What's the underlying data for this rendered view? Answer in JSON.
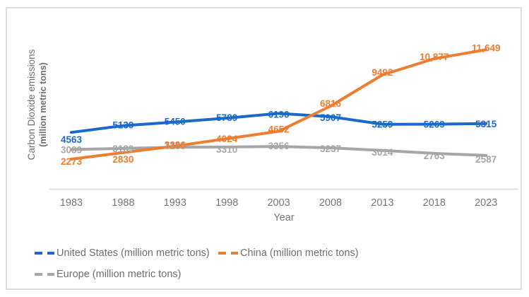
{
  "chart": {
    "y_axis_title_line1": "Carbon Dioxide emissions",
    "y_axis_title_line2": "(million metric tons)",
    "x_axis_title": "Year"
  },
  "chart_data": {
    "type": "line",
    "title": "",
    "xlabel": "Year",
    "ylabel": "Carbon Dioxide emissions (million metric tons)",
    "categories": [
      "1983",
      "1988",
      "1993",
      "1998",
      "2003",
      "2008",
      "2013",
      "2018",
      "2023"
    ],
    "series": [
      {
        "name": "United States (million metric tons)",
        "color": "#1b6ac9",
        "values": [
          4563,
          5139,
          5450,
          5789,
          6190,
          5907,
          5259,
          5269,
          5315
        ],
        "labels": [
          "4563",
          "5139",
          "5450",
          "5789",
          "6190",
          "5907",
          "5259",
          "5269",
          "5315"
        ]
      },
      {
        "name": "China (million metric tons)",
        "color": "#ed7d31",
        "values": [
          2273,
          2830,
          3386,
          4024,
          4652,
          6816,
          9492,
          10877,
          11649
        ],
        "labels": [
          "2273",
          "2830",
          "3386",
          "4024",
          "4652",
          "6816",
          "9492",
          "10,877",
          "11,649"
        ]
      },
      {
        "name": "Europe (million metric tons)",
        "color": "#a6a6a6",
        "values": [
          3089,
          3189,
          3288,
          3310,
          3356,
          3237,
          3014,
          2763,
          2587
        ],
        "labels": [
          "3089",
          "3189",
          "3288",
          "3310",
          "3356",
          "3237",
          "3014",
          "2763",
          "2587"
        ]
      }
    ],
    "legend_position": "bottom",
    "grid": false,
    "y_axis_ticks_visible": false,
    "colors": {
      "axis_line": "#d9d9d9",
      "tick_text": "#767676",
      "legend_text": "#6e6e6e",
      "frame_border": "#dddddd"
    }
  }
}
